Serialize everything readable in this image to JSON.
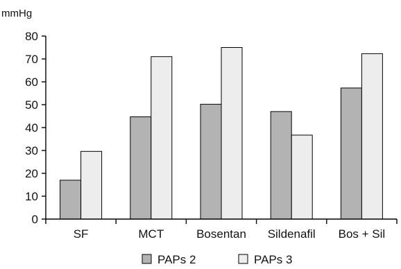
{
  "chart_data": {
    "type": "bar",
    "title": "",
    "xlabel": "",
    "ylabel": "mmHg",
    "ylim": [
      0,
      80
    ],
    "yticks": [
      0,
      10,
      20,
      30,
      40,
      50,
      60,
      70,
      80
    ],
    "grid": false,
    "legend_position": "bottom-center",
    "categories": [
      "SF",
      "MCT",
      "Bosentan",
      "Sildenafil",
      "Bos + Sil"
    ],
    "series": [
      {
        "name": "PAPs 2",
        "color": "#b3b3b3",
        "values": [
          17,
          44.7,
          50.2,
          47,
          57.3
        ]
      },
      {
        "name": "PAPs 3",
        "color": "#ededed",
        "values": [
          29.6,
          71,
          75,
          36.7,
          72.3
        ]
      }
    ]
  }
}
